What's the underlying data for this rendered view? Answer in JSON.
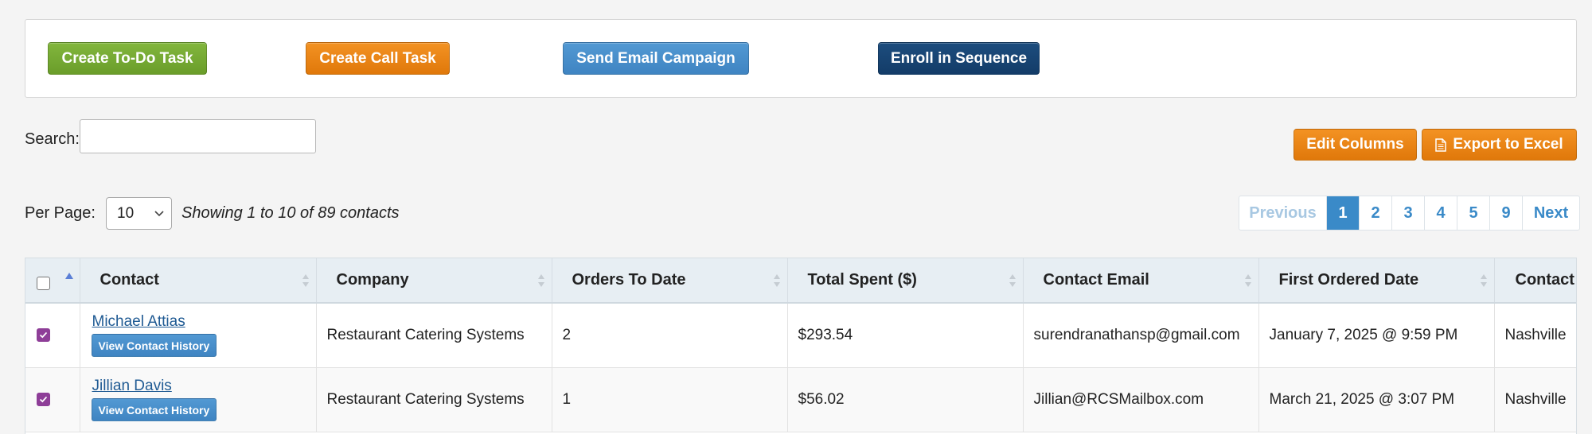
{
  "actions": {
    "todo": "Create To-Do Task",
    "call": "Create Call Task",
    "email": "Send Email Campaign",
    "sequence": "Enroll in Sequence"
  },
  "search": {
    "label": "Search:",
    "value": ""
  },
  "toolbar": {
    "edit_columns": "Edit Columns",
    "export": "Export to Excel"
  },
  "per_page": {
    "label": "Per Page:",
    "value": "10"
  },
  "showing": "Showing 1 to 10 of 89 contacts",
  "pagination": {
    "previous": "Previous",
    "pages": [
      "1",
      "2",
      "3",
      "4",
      "5",
      "9"
    ],
    "active": "1",
    "next": "Next"
  },
  "table": {
    "columns": [
      "Contact",
      "Company",
      "Orders To Date",
      "Total Spent ($)",
      "Contact Email",
      "First Ordered Date",
      "Contact"
    ],
    "history_label": "View Contact History",
    "rows": [
      {
        "checked": true,
        "contact": "Michael Attias",
        "company": "Restaurant Catering Systems",
        "orders": "2",
        "spent": "$293.54",
        "email": "surendranathansp@gmail.com",
        "first_ordered": "January 7, 2025 @ 9:59 PM",
        "city": "Nashville"
      },
      {
        "checked": true,
        "contact": "Jillian Davis",
        "company": "Restaurant Catering Systems",
        "orders": "1",
        "spent": "$56.02",
        "email": "Jillian@RCSMailbox.com",
        "first_ordered": "March 21, 2025 @ 3:07 PM",
        "city": "Nashville"
      }
    ]
  },
  "colors": {
    "green": "#6a9d2a",
    "orange": "#e0780a",
    "blue": "#3f84c2",
    "navy": "#133c68",
    "checkbox": "#8e3e98",
    "link": "#1f5a93"
  }
}
